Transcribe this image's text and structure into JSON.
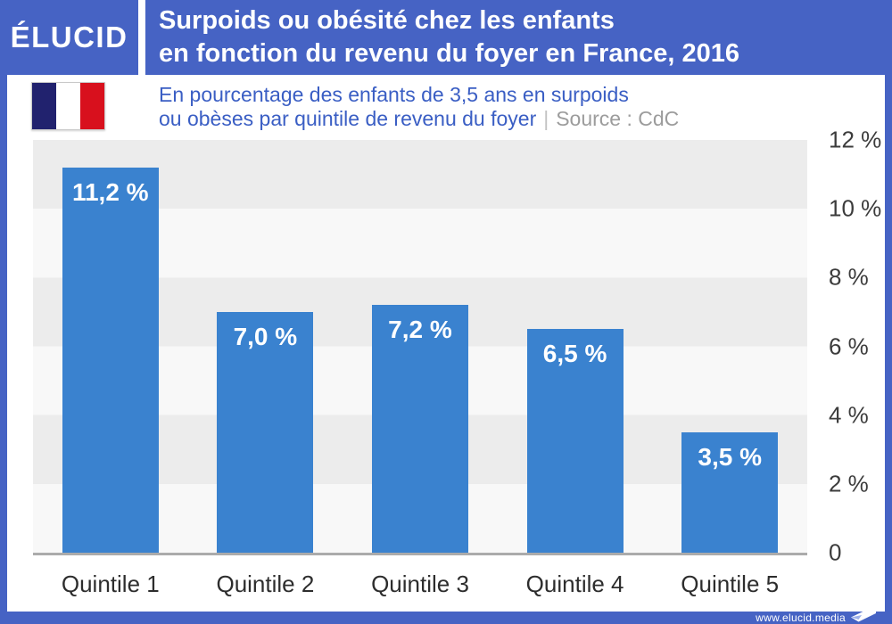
{
  "header": {
    "logo": "ÉLUCID",
    "title_line1": "Surpoids ou obésité chez les enfants",
    "title_line2": "en fonction du revenu du foyer en France, 2016"
  },
  "subtitle": {
    "line1": "En pourcentage des enfants de 3,5 ans en surpoids",
    "line2": "ou obèses par quintile de revenu du foyer",
    "separator": "|",
    "source": "Source : CdC",
    "flag_icon": "french-flag-icon",
    "flag_colors": [
      "#21226e",
      "#ffffff",
      "#d8101d"
    ]
  },
  "chart_data": {
    "type": "bar",
    "title": "Surpoids ou obésité chez les enfants en fonction du revenu du foyer en France, 2016",
    "subtitle": "En pourcentage des enfants de 3,5 ans en surpoids ou obèses par quintile de revenu du foyer",
    "source": "Source : CdC",
    "categories": [
      "Quintile 1",
      "Quintile 2",
      "Quintile 3",
      "Quintile 4",
      "Quintile 5"
    ],
    "values": [
      11.2,
      7.0,
      7.2,
      6.5,
      3.5
    ],
    "value_labels": [
      "11,2 %",
      "7,0 %",
      "7,2 %",
      "6,5 %",
      "3,5 %"
    ],
    "y_ticks": [
      "12 %",
      "10 %",
      "8 %",
      "6 %",
      "4 %",
      "2 %",
      "0"
    ],
    "ylim": [
      0,
      12
    ],
    "xlabel": "",
    "ylabel": "",
    "legend": "none",
    "grid": "alternating horizontal bands of 2 %",
    "y_axis_position": "right",
    "bar_color": "#3a82cf",
    "stripe_colors": [
      "#ececec",
      "#f8f8f8"
    ]
  },
  "footer": {
    "url": "www.elucid.media",
    "logo_icon": "elucid-arrow-icon"
  },
  "colors": {
    "brand_blue": "#4663c4",
    "bar_blue": "#3a82cf",
    "subtitle_blue": "#3a5ec4"
  }
}
